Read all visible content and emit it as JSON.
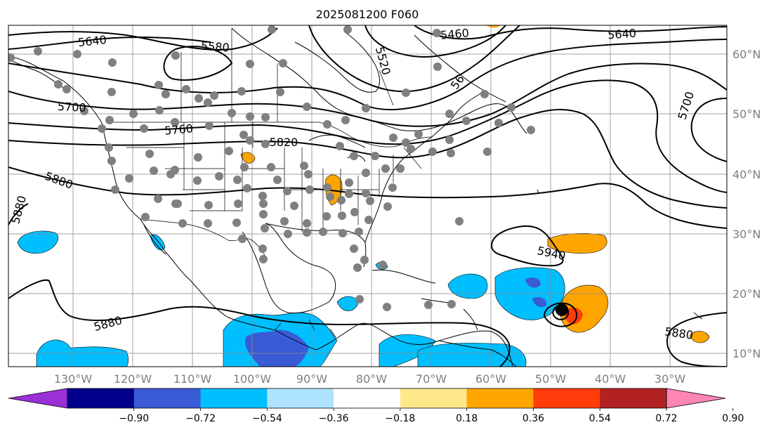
{
  "title": "2025081200 F060",
  "lon_ticks": [
    "130°W",
    "120°W",
    "110°W",
    "100°W",
    "90°W",
    "80°W",
    "70°W",
    "60°W",
    "50°W",
    "40°W",
    "30°W"
  ],
  "lat_ticks": [
    "60°N",
    "50°N",
    "40°N",
    "30°N",
    "20°N",
    "10°N"
  ],
  "colorbar": {
    "ticks": [
      "−0.90",
      "−0.72",
      "−0.54",
      "−0.36",
      "−0.18",
      "0.18",
      "0.36",
      "0.54",
      "0.72",
      "0.90"
    ],
    "colors": [
      "#9b30d9",
      "#00008b",
      "#3a5bd6",
      "#00bfff",
      "#aee3ff",
      "#ffffff",
      "#ffe88a",
      "#ffa500",
      "#ff3c0a",
      "#b22222",
      "#ff85b4"
    ]
  },
  "contour_labels": [
    "5640",
    "5580",
    "5460",
    "5640",
    "5520",
    "5700",
    "5760",
    "5820",
    "5880",
    "5880",
    "5700",
    "5880",
    "5940",
    "5880"
  ],
  "contour_label_partial": "56"
}
